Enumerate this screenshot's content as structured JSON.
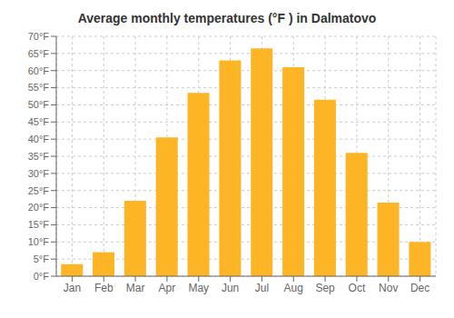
{
  "chart_data": {
    "type": "bar",
    "title": "Average monthly temperatures (°F ) in Dalmatovo",
    "categories": [
      "Jan",
      "Feb",
      "Mar",
      "Apr",
      "May",
      "Jun",
      "Jul",
      "Aug",
      "Sep",
      "Oct",
      "Nov",
      "Dec"
    ],
    "values": [
      3.5,
      7.0,
      22.0,
      40.5,
      53.5,
      63.0,
      66.5,
      61.0,
      51.5,
      36.0,
      21.5,
      10.0
    ],
    "color": "#FDB525",
    "ylim": [
      0,
      70
    ],
    "yticks": [
      {
        "value": 0,
        "label": "0°F"
      },
      {
        "value": 5,
        "label": "5°F"
      },
      {
        "value": 10,
        "label": "10°F"
      },
      {
        "value": 15,
        "label": "15°F"
      },
      {
        "value": 20,
        "label": "20°F"
      },
      {
        "value": 25,
        "label": "25°F"
      },
      {
        "value": 30,
        "label": "30°F"
      },
      {
        "value": 35,
        "label": "35°F"
      },
      {
        "value": 40,
        "label": "40°F"
      },
      {
        "value": 45,
        "label": "45°F"
      },
      {
        "value": 50,
        "label": "50°F"
      },
      {
        "value": 55,
        "label": "55°F"
      },
      {
        "value": 60,
        "label": "60°F"
      },
      {
        "value": 65,
        "label": "65°F"
      },
      {
        "value": 70,
        "label": "70°F"
      }
    ],
    "grid": true
  }
}
